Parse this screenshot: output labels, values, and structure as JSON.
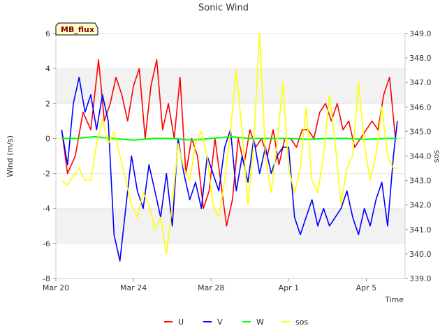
{
  "chart_data": {
    "type": "line",
    "title": "Sonic Wind",
    "xlabel": "Time",
    "ylabel_left": "Wind (m/s)",
    "ylabel_right": "sos",
    "badge": "MB_flux",
    "x_ticks": [
      "Mar 20",
      "Mar 24",
      "Mar 28",
      "Apr 1",
      "Apr 5"
    ],
    "x_range_days": [
      0,
      18
    ],
    "ylim_left": [
      -8,
      6
    ],
    "y_ticks_left": [
      "-8",
      "-6",
      "-4",
      "-2",
      "0",
      "2",
      "4",
      "6"
    ],
    "ylim_right": [
      339.0,
      349.0
    ],
    "y_ticks_right": [
      "339.0",
      "340.0",
      "341.0",
      "342.0",
      "343.0",
      "344.0",
      "345.0",
      "346.0",
      "347.0",
      "348.0",
      "349.0"
    ],
    "shaded_bands_left": [
      [
        -6,
        -4
      ],
      [
        2,
        4
      ]
    ],
    "series": [
      {
        "name": "U",
        "axis": "left",
        "color": "#ff0000",
        "x": [
          0.3,
          0.6,
          1.0,
          1.4,
          1.8,
          2.2,
          2.5,
          2.8,
          3.1,
          3.4,
          3.7,
          4.0,
          4.3,
          4.6,
          4.9,
          5.2,
          5.5,
          5.8,
          6.1,
          6.4,
          6.7,
          7.0,
          7.3,
          7.6,
          7.9,
          8.2,
          8.5,
          8.8,
          9.1,
          9.4,
          9.7,
          10.0,
          10.3,
          10.6,
          10.9,
          11.2,
          11.5,
          11.8,
          12.1,
          12.4,
          12.7,
          13.0,
          13.3,
          13.6,
          13.9,
          14.2,
          14.5,
          14.8,
          15.1,
          15.4,
          15.7,
          16.0,
          16.3,
          16.6,
          16.9,
          17.2,
          17.5
        ],
        "values": [
          0.5,
          -2.0,
          -1.0,
          1.5,
          0.5,
          4.5,
          1.0,
          2.0,
          3.5,
          2.5,
          1.0,
          3.0,
          4.0,
          0.0,
          3.0,
          4.5,
          0.5,
          2.0,
          0.0,
          3.5,
          -2.0,
          0.0,
          -1.0,
          -4.0,
          -3.0,
          0.0,
          -2.5,
          -5.0,
          -3.5,
          0.0,
          -1.5,
          0.5,
          -0.5,
          0.0,
          -1.0,
          0.5,
          -1.5,
          0.0,
          0.0,
          -0.5,
          0.5,
          0.5,
          0.0,
          1.5,
          2.0,
          1.0,
          2.0,
          0.5,
          1.0,
          -0.5,
          0.0,
          0.5,
          1.0,
          0.5,
          2.5,
          3.5,
          0.0
        ]
      },
      {
        "name": "V",
        "axis": "left",
        "color": "#0000ff",
        "x": [
          0.3,
          0.6,
          0.9,
          1.2,
          1.5,
          1.8,
          2.1,
          2.4,
          2.7,
          3.0,
          3.3,
          3.6,
          3.9,
          4.2,
          4.5,
          4.8,
          5.1,
          5.4,
          5.7,
          6.0,
          6.3,
          6.6,
          6.9,
          7.2,
          7.5,
          7.8,
          8.1,
          8.4,
          8.7,
          9.0,
          9.3,
          9.6,
          9.9,
          10.2,
          10.5,
          10.8,
          11.1,
          11.4,
          11.7,
          12.0,
          12.3,
          12.6,
          12.9,
          13.2,
          13.5,
          13.8,
          14.1,
          14.4,
          14.7,
          15.0,
          15.3,
          15.6,
          15.9,
          16.2,
          16.5,
          16.8,
          17.1,
          17.4,
          17.6
        ],
        "values": [
          0.5,
          -1.5,
          2.0,
          3.5,
          1.5,
          2.5,
          0.5,
          2.5,
          1.0,
          -5.5,
          -7.0,
          -4.0,
          -1.0,
          -3.0,
          -4.0,
          -1.5,
          -3.0,
          -4.5,
          -2.0,
          -5.0,
          0.0,
          -2.0,
          -3.5,
          -2.5,
          -4.0,
          -1.0,
          -2.0,
          -3.0,
          -0.5,
          0.5,
          -3.0,
          -1.0,
          -2.5,
          0.0,
          -2.0,
          -0.5,
          -2.0,
          -1.0,
          -0.5,
          -0.5,
          -4.5,
          -5.5,
          -4.5,
          -3.5,
          -5.0,
          -4.0,
          -5.0,
          -4.5,
          -4.0,
          -3.0,
          -4.5,
          -5.5,
          -4.0,
          -5.0,
          -3.5,
          -2.5,
          -5.0,
          -1.0,
          1.0
        ]
      },
      {
        "name": "W",
        "axis": "left",
        "color": "#00ff00",
        "x": [
          0.3,
          1.0,
          2.0,
          3.0,
          4.0,
          5.0,
          6.0,
          7.0,
          8.0,
          9.0,
          10.0,
          11.0,
          12.0,
          13.0,
          14.0,
          15.0,
          16.0,
          17.0,
          17.6
        ],
        "values": [
          0.0,
          0.0,
          0.1,
          0.0,
          -0.1,
          0.0,
          0.0,
          -0.1,
          0.0,
          0.1,
          0.0,
          0.0,
          0.0,
          -0.05,
          0.0,
          0.0,
          -0.05,
          0.0,
          0.0
        ]
      },
      {
        "name": "sos",
        "axis": "right",
        "color": "#ffff00",
        "x": [
          0.3,
          0.6,
          0.9,
          1.2,
          1.5,
          1.8,
          2.1,
          2.4,
          2.7,
          3.0,
          3.3,
          3.6,
          3.9,
          4.2,
          4.5,
          4.8,
          5.1,
          5.4,
          5.7,
          6.0,
          6.3,
          6.6,
          6.9,
          7.2,
          7.5,
          7.8,
          8.1,
          8.4,
          8.7,
          9.0,
          9.3,
          9.6,
          9.9,
          10.2,
          10.5,
          10.8,
          11.1,
          11.4,
          11.7,
          12.0,
          12.3,
          12.6,
          12.9,
          13.2,
          13.5,
          13.8,
          14.1,
          14.4,
          14.7,
          15.0,
          15.3,
          15.6,
          15.9,
          16.2,
          16.5,
          16.8,
          17.1,
          17.4,
          17.6
        ],
        "values": [
          343.0,
          342.8,
          343.2,
          343.5,
          343.0,
          343.0,
          344.5,
          345.5,
          344.5,
          345.0,
          344.0,
          343.0,
          342.0,
          341.5,
          342.5,
          342.0,
          341.0,
          341.5,
          340.0,
          342.0,
          344.5,
          343.5,
          343.0,
          344.5,
          345.0,
          344.0,
          342.0,
          341.5,
          343.0,
          345.0,
          347.5,
          345.0,
          342.0,
          344.5,
          349.0,
          344.0,
          342.5,
          344.5,
          347.0,
          343.5,
          342.5,
          343.5,
          346.0,
          343.0,
          342.5,
          344.0,
          346.5,
          344.5,
          342.0,
          343.5,
          344.0,
          347.0,
          344.5,
          343.0,
          344.0,
          346.0,
          344.0,
          343.5,
          343.5
        ]
      }
    ],
    "legend": [
      "U",
      "V",
      "W",
      "sos"
    ],
    "legend_position": "bottom-center"
  }
}
